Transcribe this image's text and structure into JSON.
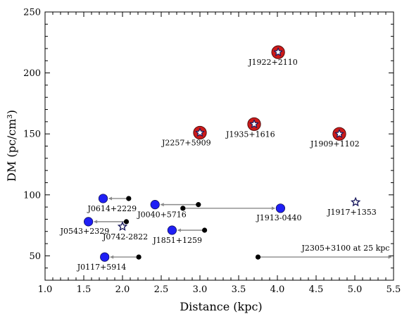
{
  "chart_data": {
    "type": "scatter",
    "xlabel": "Distance (kpc)",
    "ylabel": "DM (pc/cm³)",
    "xlim": [
      1.0,
      5.5
    ],
    "ylim": [
      30,
      250
    ],
    "xticks": [
      1.0,
      1.5,
      2.0,
      2.5,
      3.0,
      3.5,
      4.0,
      4.5,
      5.0,
      5.5
    ],
    "yticks": [
      50,
      100,
      150,
      200,
      250
    ],
    "grid": false,
    "colors": {
      "blue": "#1f1ff5",
      "red": "#cc1a1a",
      "navy": "#1a1a5e",
      "arrow": "#8a8a8a",
      "black": "#000000"
    },
    "red_ring_stars": [
      {
        "name": "J1922+2110",
        "x": 4.01,
        "y": 217
      },
      {
        "name": "J1935+1616",
        "x": 3.7,
        "y": 158
      },
      {
        "name": "J2257+5909",
        "x": 3.0,
        "y": 151
      },
      {
        "name": "J1909+1102",
        "x": 4.8,
        "y": 150
      }
    ],
    "stars": [
      {
        "name": "J1917+1353",
        "x": 5.01,
        "y": 94
      },
      {
        "name": "J0742-2822",
        "x": 2.0,
        "y": 74
      }
    ],
    "arrows": [
      {
        "name": "J0614+2229",
        "from": [
          2.08,
          97
        ],
        "to": [
          1.75,
          97
        ]
      },
      {
        "name": "J0040+5716",
        "from": [
          2.98,
          92
        ],
        "to": [
          2.42,
          92
        ]
      },
      {
        "name": "J1913-0440",
        "from": [
          2.78,
          89
        ],
        "to": [
          4.04,
          89
        ]
      },
      {
        "name": "J0543+2329",
        "from": [
          2.05,
          78
        ],
        "to": [
          1.56,
          78
        ]
      },
      {
        "name": "J1851+1259",
        "from": [
          3.06,
          71
        ],
        "to": [
          2.64,
          71
        ]
      },
      {
        "name": "J0117+5914",
        "from": [
          2.21,
          49
        ],
        "to": [
          1.77,
          49
        ]
      },
      {
        "name": "J2305+3100 at 25 kpc",
        "from": [
          3.75,
          49
        ],
        "to": [
          5.5,
          49
        ]
      }
    ]
  }
}
